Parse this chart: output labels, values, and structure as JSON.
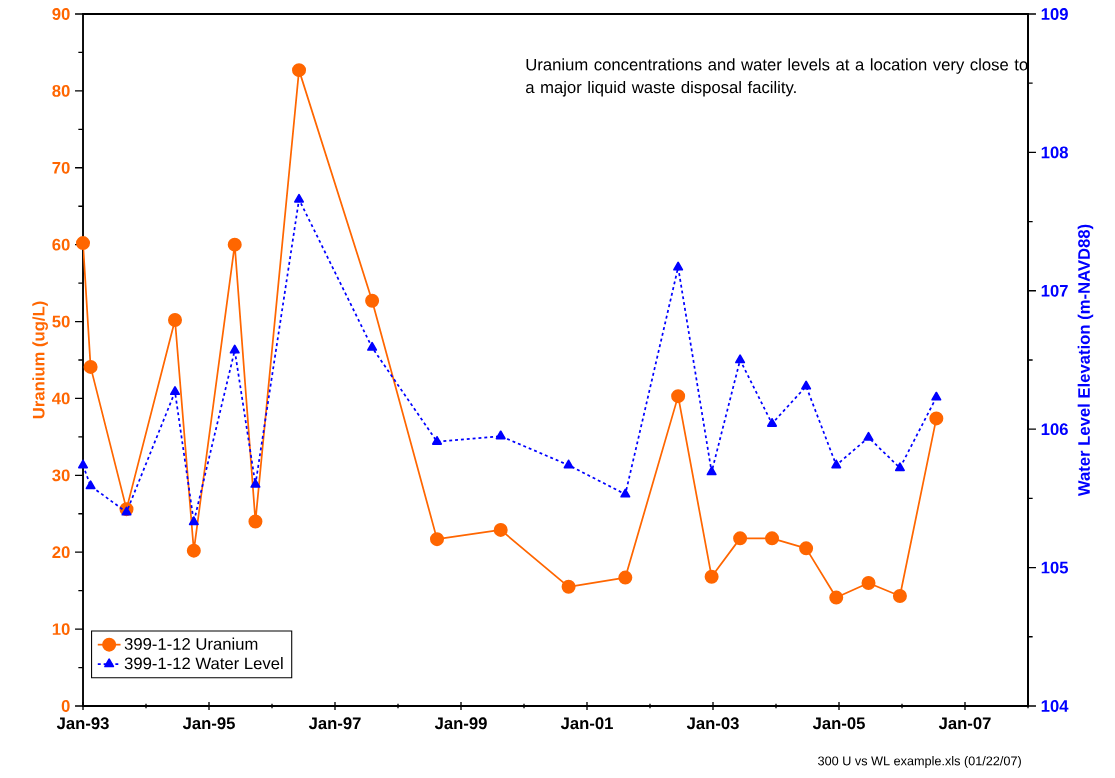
{
  "chart_data": {
    "type": "line",
    "ylabel": "Uranium (ug/L)",
    "y2label": "Water Level Elevation (m-NAVD88)",
    "annotations": [
      "Uranium concentrations and water levels at a location very close to a major liquid waste disposal facility.",
      "300 U vs WL example.xls (01/22/07)"
    ],
    "x": [
      "1993-01-01",
      "1993-02-14",
      "1993-09-10",
      "1994-06-18",
      "1994-10-05",
      "1995-05-30",
      "1995-09-27",
      "1996-06-06",
      "1997-08-04",
      "1998-08-15",
      "1999-08-19",
      "2000-09-16",
      "2001-08-11",
      "2002-06-13",
      "2002-12-24",
      "2003-06-07",
      "2003-12-09",
      "2004-06-24",
      "2004-12-16",
      "2005-06-21",
      "2005-12-20",
      "2006-07-19"
    ],
    "series": [
      {
        "name": "399-1-12 Uranium",
        "color": "#ff6600",
        "marker": "circle",
        "line_style": "solid",
        "values": [
          60.2,
          44.1,
          25.6,
          50.2,
          20.2,
          60.0,
          24.0,
          82.7,
          52.7,
          21.7,
          22.9,
          15.5,
          16.7,
          40.3,
          16.8,
          21.8,
          21.8,
          20.5,
          14.1,
          16.0,
          14.3,
          37.4
        ]
      },
      {
        "name": "399-1-12 Water Level",
        "color": "#0000ff",
        "marker": "triangle",
        "line_style": "dotted",
        "axis": "y2",
        "values": [
          105.74,
          105.59,
          105.4,
          106.27,
          105.33,
          106.57,
          105.6,
          107.66,
          106.59,
          105.91,
          105.95,
          105.74,
          105.53,
          107.17,
          105.69,
          106.5,
          106.04,
          106.31,
          105.74,
          105.94,
          105.72,
          106.23
        ]
      }
    ],
    "xlim": [
      "1993-01-01",
      "2008-01-01"
    ],
    "xticks": [
      {
        "value": "1993-01-01",
        "label": "Jan-93"
      },
      {
        "value": "1994-01-01",
        "label": null
      },
      {
        "value": "1995-01-01",
        "label": "Jan-95"
      },
      {
        "value": "1996-01-01",
        "label": null
      },
      {
        "value": "1997-01-01",
        "label": "Jan-97"
      },
      {
        "value": "1998-01-01",
        "label": null
      },
      {
        "value": "1999-01-01",
        "label": "Jan-99"
      },
      {
        "value": "2000-01-01",
        "label": null
      },
      {
        "value": "2001-01-01",
        "label": "Jan-01"
      },
      {
        "value": "2002-01-01",
        "label": null
      },
      {
        "value": "2003-01-01",
        "label": "Jan-03"
      },
      {
        "value": "2004-01-01",
        "label": null
      },
      {
        "value": "2005-01-01",
        "label": "Jan-05"
      },
      {
        "value": "2006-01-01",
        "label": null
      },
      {
        "value": "2007-01-01",
        "label": "Jan-07"
      },
      {
        "value": "2008-01-01",
        "label": null
      }
    ],
    "ylim": [
      0,
      90
    ],
    "yticks": [
      0,
      {
        "value": 5,
        "label": null
      },
      10,
      {
        "value": 15,
        "label": null
      },
      20,
      {
        "value": 25,
        "label": null
      },
      30,
      {
        "value": 35,
        "label": null
      },
      40,
      {
        "value": 45,
        "label": null
      },
      50,
      {
        "value": 55,
        "label": null
      },
      60,
      {
        "value": 65,
        "label": null
      },
      70,
      {
        "value": 75,
        "label": null
      },
      80,
      {
        "value": 85,
        "label": null
      },
      90
    ],
    "y2lim": [
      104,
      109
    ],
    "y2ticks": [
      104,
      {
        "value": 104.5,
        "label": null
      },
      105,
      {
        "value": 105.5,
        "label": null
      },
      106,
      {
        "value": 106.5,
        "label": null
      },
      107,
      {
        "value": 107.5,
        "label": null
      },
      108,
      {
        "value": 108.5,
        "label": null
      },
      109
    ],
    "legend": "bottom left"
  }
}
